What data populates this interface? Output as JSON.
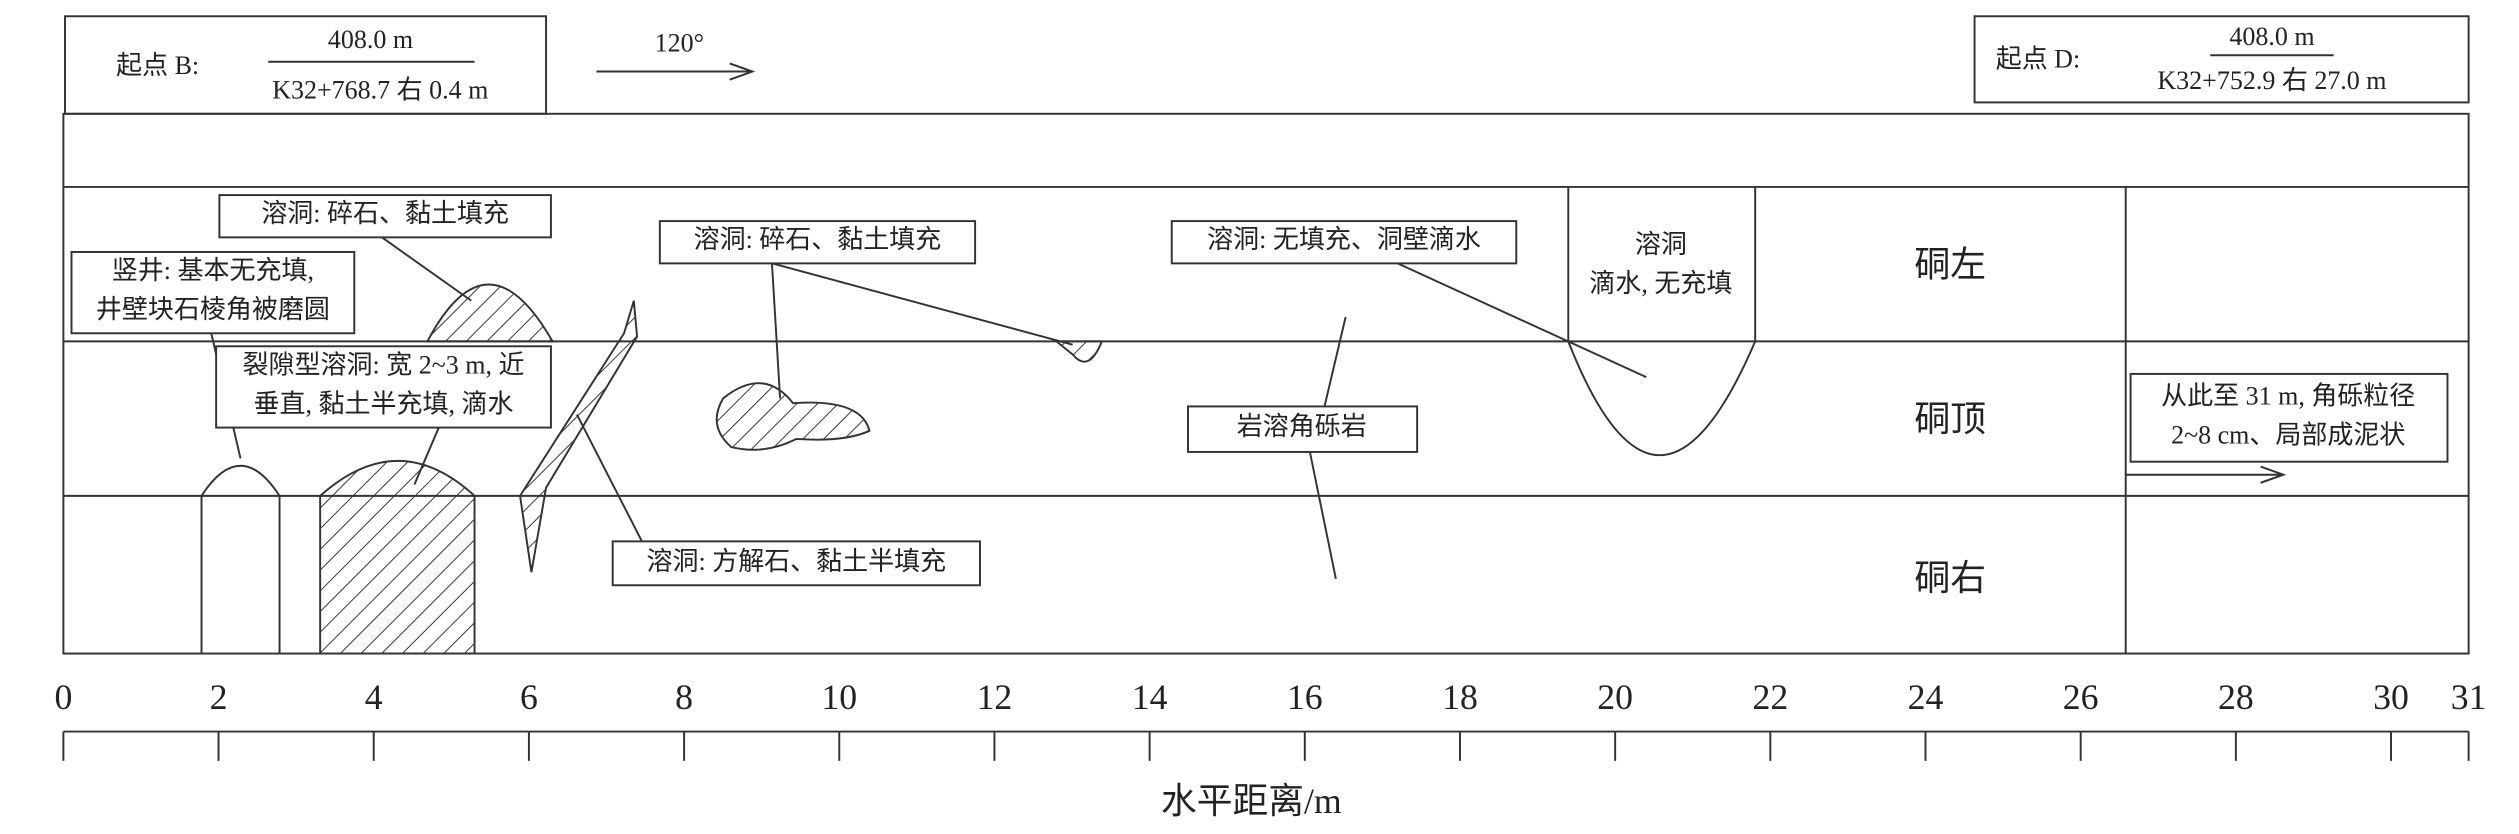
{
  "start_b": {
    "label": "起点 B:",
    "elevation": "408.0 m",
    "station": "K32+768.7 右 0.4 m"
  },
  "start_d": {
    "label": "起点 D:",
    "elevation": "408.0 m",
    "station": "K32+752.9 右 27.0 m"
  },
  "direction": "120°",
  "rows": [
    "硐左",
    "硐顶",
    "硐右"
  ],
  "notes": {
    "cave1": "溶洞: 碎石、黏土填充",
    "shaft": [
      "竖井: 基本无充填,",
      "井壁块石棱角被磨圆"
    ],
    "fissure": [
      "裂隙型溶洞: 宽 2~3 m, 近",
      "垂直, 黏土半充填, 滴水"
    ],
    "cave2": "溶洞: 碎石、黏土填充",
    "cave3": "溶洞: 无填充、洞壁滴水",
    "cave4": [
      "溶洞",
      "滴水, 无充填"
    ],
    "breccia": "岩溶角砾岩",
    "cave5": "溶洞: 方解石、黏土半填充",
    "beyond": [
      "从此至 31 m, 角砾粒径",
      "2~8 cm、局部成泥状"
    ]
  },
  "axis": {
    "label": "水平距离/m",
    "min": 0,
    "max": 31,
    "ticks": [
      0,
      2,
      4,
      6,
      8,
      10,
      12,
      14,
      16,
      18,
      20,
      22,
      24,
      26,
      28,
      30,
      31
    ]
  }
}
